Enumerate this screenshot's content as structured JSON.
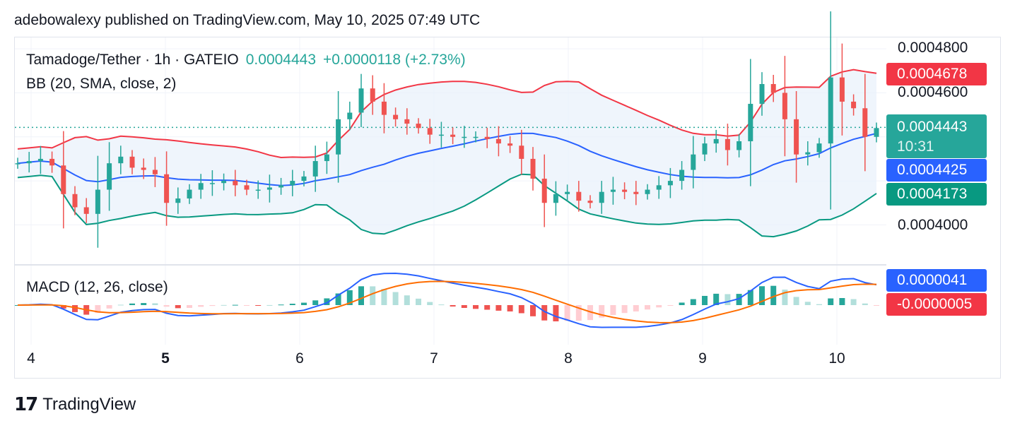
{
  "header": {
    "published": "adebowalexy published on TradingView.com, May 10, 2025 07:49 UTC"
  },
  "legend": {
    "symbol": "Tamadoge/Tether · 1h · GATEIO",
    "price": "0.0004443",
    "change": "+0.0000118 (+2.73%)",
    "bb": "BB (20, SMA, close, 2)",
    "macd": "MACD (12, 26, close)"
  },
  "price_axis": [
    "0.0004800",
    "0.0004600",
    "0.0004000"
  ],
  "tags": {
    "bb_upper": "0.0004678",
    "last_price": "0.0004443",
    "countdown": "10:31",
    "bb_basis": "0.0004425",
    "bb_lower": "0.0004173",
    "macd": "0.0000041",
    "signal": "-0.0000005"
  },
  "time_axis": [
    "4",
    "5",
    "6",
    "7",
    "8",
    "9",
    "10"
  ],
  "colors": {
    "up": "#26a69a",
    "down": "#ef5350",
    "bb_upper": "#f23645",
    "bb_lower": "#089981",
    "bb_basis": "#2962ff",
    "bb_fill": "#e8f1fb",
    "macd_line": "#2962ff",
    "signal_line": "#ff6d00",
    "hist_up": "#26a69a",
    "hist_up_light": "#b2dfdb",
    "hist_down": "#ef5350",
    "hist_down_light": "#ffcdd2"
  },
  "brand": {
    "name": "TradingView"
  },
  "chart_data": {
    "type": "candlestick",
    "title": "Tamadoge/Tether · 1h · GATEIO",
    "ylim": [
      0.0003828,
      0.0004855
    ],
    "days": [
      4,
      5,
      6,
      7,
      8,
      9,
      10
    ],
    "close_series": [
      0.000428,
      0.000429,
      0.00043,
      0.000427,
      0.000414,
      0.000408,
      0.000405,
      0.000416,
      0.000428,
      0.000431,
      0.000426,
      0.000425,
      0.000423,
      0.00041,
      0.000412,
      0.000416,
      0.000419,
      0.000419,
      0.00042,
      0.000418,
      0.000416,
      0.000416,
      0.000417,
      0.000418,
      0.00042,
      0.000422,
      0.000429,
      0.000432,
      0.000448,
      0.000451,
      0.000462,
      0.000456,
      0.00045,
      0.000448,
      0.000446,
      0.000444,
      0.000441,
      0.000441,
      0.00044,
      0.00044,
      0.00044,
      0.000439,
      0.000437,
      0.000436,
      0.00043,
      0.000421,
      0.00041,
      0.000414,
      0.000415,
      0.000411,
      0.00041,
      0.000415,
      0.000416,
      0.000415,
      0.000414,
      0.000416,
      0.000418,
      0.00042,
      0.000425,
      0.000432,
      0.000437,
      0.000439,
      0.000434,
      0.000438,
      0.000455,
      0.000464,
      0.00046,
      0.000448,
      0.000432,
      0.000433,
      0.000437,
      0.000467,
      0.000456,
      0.000453,
      0.00044,
      0.000444
    ],
    "bollinger": {
      "upper_end": 0.0004678,
      "basis_end": 0.0004425,
      "lower_end": 0.0004173
    },
    "macd": {
      "macd_end": 4.1e-06,
      "signal_end": -5e-07
    }
  }
}
